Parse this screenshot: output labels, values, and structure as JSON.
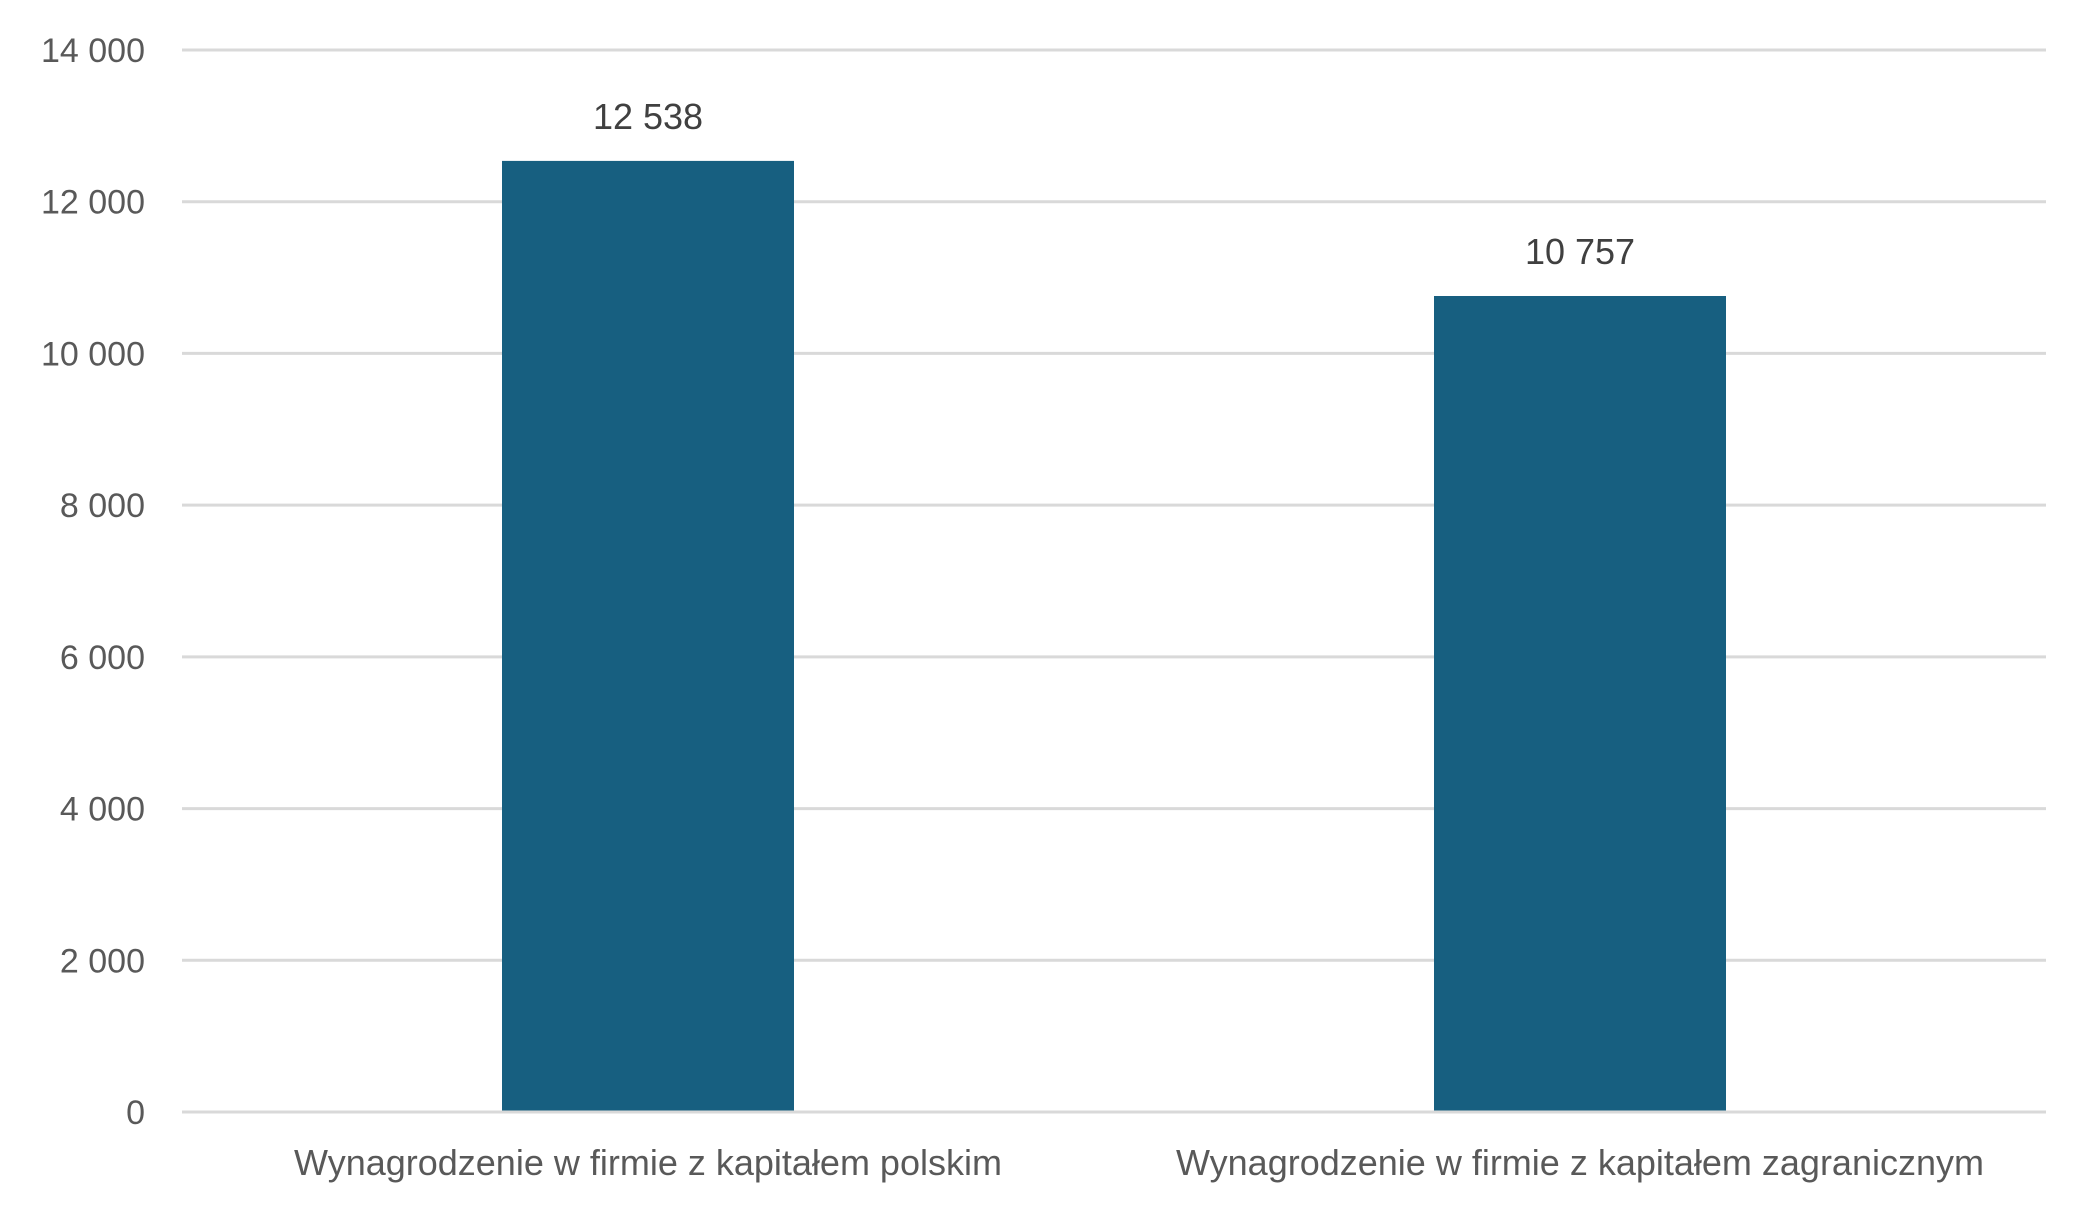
{
  "chart_data": {
    "type": "bar",
    "categories": [
      "Wynagrodzenie w firmie z kapitałem polskim",
      "Wynagrodzenie w firmie z kapitałem zagranicznym"
    ],
    "values": [
      12538,
      10757
    ],
    "value_labels": [
      "12 538",
      "10 757"
    ],
    "ylim": [
      0,
      14000
    ],
    "yticks": [
      0,
      2000,
      4000,
      6000,
      8000,
      10000,
      12000,
      14000
    ],
    "ytick_labels": [
      "0",
      "2 000",
      "4 000",
      "6 000",
      "8 000",
      "10 000",
      "12 000",
      "14 000"
    ],
    "title": "",
    "xlabel": "",
    "ylabel": "",
    "grid": true,
    "legend": "none",
    "bar_color": "#175f80"
  }
}
